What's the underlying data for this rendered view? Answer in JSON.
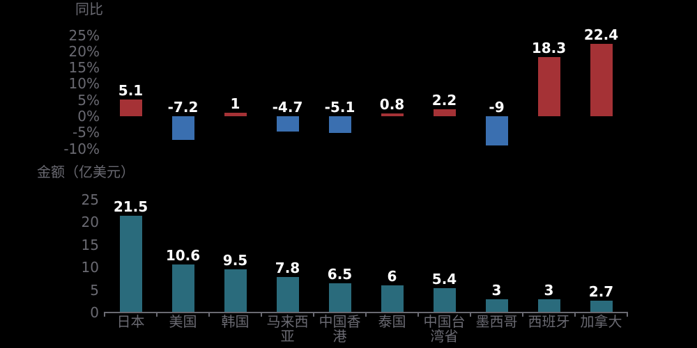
{
  "styles": {
    "background": "#000000",
    "axis_text_color": "#6a6a72",
    "axis_line_color": "#6a6a72",
    "data_label_color": "#ffffff",
    "data_label_outline": "#000000"
  },
  "chart_data": [
    {
      "type": "bar",
      "title": "同比",
      "categories": [
        "日本",
        "美国",
        "韩国",
        "马来西亚",
        "中国香港",
        "泰国",
        "中国台湾省",
        "墨西哥",
        "西班牙",
        "加拿大"
      ],
      "values": [
        5.1,
        -7.2,
        1,
        -4.7,
        -5.1,
        0.8,
        2.2,
        -9,
        18.3,
        22.4
      ],
      "value_labels": [
        "5.1",
        "-7.2",
        "1",
        "-4.7",
        "-5.1",
        "0.8",
        "2.2",
        "-9",
        "18.3",
        "22.4"
      ],
      "yticks": [
        25,
        20,
        15,
        10,
        5,
        0,
        -5,
        -10
      ],
      "ytick_labels": [
        "25%",
        "20%",
        "15%",
        "10%",
        "5%",
        "0%",
        "-5%",
        "-10%"
      ],
      "ylim": [
        -10,
        25
      ],
      "positive_color": "#a53236",
      "negative_color": "#3a6fb0",
      "grid": false,
      "legend": "none",
      "xlabel": "",
      "ylabel": "同比"
    },
    {
      "type": "bar",
      "title": "金额（亿美元）",
      "categories": [
        "日本",
        "美国",
        "韩国",
        "马来西亚",
        "中国香港",
        "泰国",
        "中国台湾省",
        "墨西哥",
        "西班牙",
        "加拿大"
      ],
      "category_display": [
        "日本",
        "美国",
        "韩国",
        "马来西\n亚",
        "中国香\n港",
        "泰国",
        "中国台\n湾省",
        "墨西哥",
        "西班牙",
        "加拿大"
      ],
      "values": [
        21.5,
        10.6,
        9.5,
        7.8,
        6.5,
        6,
        5.4,
        3,
        3,
        2.7
      ],
      "value_labels": [
        "21.5",
        "10.6",
        "9.5",
        "7.8",
        "6.5",
        "6",
        "5.4",
        "3",
        "3",
        "2.7"
      ],
      "yticks": [
        25,
        20,
        15,
        10,
        5,
        0
      ],
      "ytick_labels": [
        "25",
        "20",
        "15",
        "10",
        "5",
        "0"
      ],
      "ylim": [
        0,
        25
      ],
      "bar_color": "#2a6b7c",
      "grid": false,
      "legend": "none",
      "xlabel": "",
      "ylabel": "金额（亿美元）"
    }
  ]
}
